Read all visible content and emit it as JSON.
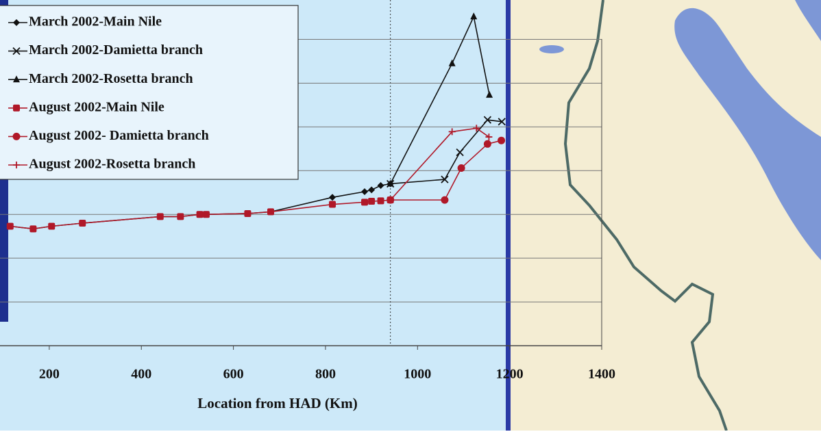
{
  "chart_data": {
    "type": "line",
    "x_label": "Location from HAD (Km)",
    "xlim": [
      93,
      1400
    ],
    "xticks": [
      200,
      400,
      600,
      800,
      1000,
      1200,
      1400
    ],
    "ylim": [
      0,
      7.9
    ],
    "yticks": [
      1,
      2,
      3,
      4,
      5,
      6,
      7
    ],
    "grid": true,
    "reference_x": 941,
    "series": [
      {
        "name": "March 2002-Main Nile",
        "color": "#111111",
        "marker": "diamond",
        "x": [
          115,
          165,
          205,
          272,
          441,
          485,
          527,
          541,
          631,
          681,
          815,
          885,
          900,
          920,
          941
        ],
        "values": [
          2.73,
          2.67,
          2.73,
          2.8,
          2.95,
          2.95,
          3.0,
          3.0,
          3.02,
          3.06,
          3.39,
          3.52,
          3.56,
          3.66,
          3.7
        ]
      },
      {
        "name": "March 2002-Damietta branch",
        "color": "#111111",
        "marker": "x",
        "x": [
          941,
          1059,
          1092,
          1152,
          1183
        ],
        "values": [
          3.7,
          3.8,
          4.42,
          5.16,
          5.12
        ]
      },
      {
        "name": "March 2002-Rosetta branch",
        "color": "#111111",
        "marker": "triangle",
        "x": [
          941,
          1075,
          1122,
          1156
        ],
        "values": [
          3.7,
          6.45,
          7.52,
          5.73
        ]
      },
      {
        "name": "August 2002-Main Nile",
        "color": "#b01828",
        "marker": "square",
        "x": [
          115,
          165,
          205,
          272,
          441,
          485,
          527,
          541,
          631,
          681,
          815,
          885,
          900,
          920,
          941
        ],
        "values": [
          2.73,
          2.67,
          2.73,
          2.8,
          2.95,
          2.95,
          3.0,
          3.0,
          3.02,
          3.06,
          3.23,
          3.28,
          3.3,
          3.31,
          3.33
        ]
      },
      {
        "name": "August 2002- Damietta branch",
        "color": "#b01828",
        "marker": "circle",
        "x": [
          941,
          1059,
          1095,
          1152,
          1182
        ],
        "values": [
          3.33,
          3.33,
          4.06,
          4.61,
          4.69
        ]
      },
      {
        "name": "August 2002-Rosetta branch",
        "color": "#b01828",
        "marker": "plus",
        "x": [
          941,
          1075,
          1128,
          1155
        ],
        "values": [
          3.33,
          4.89,
          4.97,
          4.77
        ]
      }
    ]
  }
}
